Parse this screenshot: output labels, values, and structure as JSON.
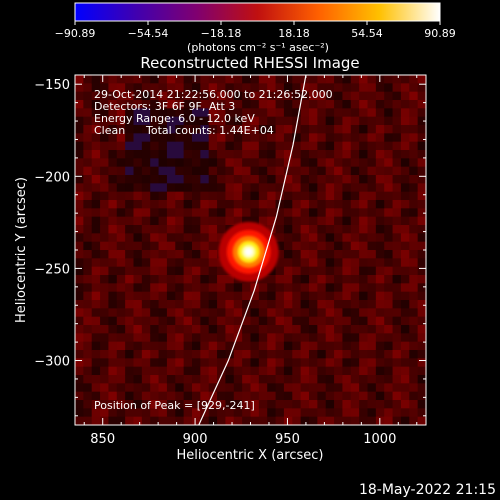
{
  "colorbar": {
    "tick_labels": [
      "−90.89",
      "−54.54",
      "−18.18",
      "18.18",
      "54.54",
      "90.89"
    ],
    "tick_values": [
      -90.89,
      -54.54,
      -18.18,
      18.18,
      54.54,
      90.89
    ],
    "range": [
      -90.89,
      90.89
    ],
    "units_label": "(photons cm⁻² s⁻¹ asec⁻²)",
    "colormap_stops": [
      "#0000ff",
      "#4000b0",
      "#800070",
      "#c01010",
      "#ff6000",
      "#ffc000",
      "#ffffff"
    ]
  },
  "chart_data": {
    "type": "heatmap",
    "title": "Reconstructed RHESSI Image",
    "xlabel": "Heliocentric X (arcsec)",
    "ylabel": "Heliocentric Y (arcsec)",
    "xlim": [
      835,
      1025
    ],
    "ylim": [
      -335,
      -145
    ],
    "xticks": [
      850,
      900,
      950,
      1000
    ],
    "xtick_labels": [
      "850",
      "900",
      "950",
      "1000"
    ],
    "yticks": [
      -150,
      -200,
      -250,
      -300
    ],
    "ytick_labels": [
      "−150",
      "−200",
      "−250",
      "−300"
    ],
    "annotations": [
      "29-Oct-2014 21:22:56.000 to 21:26:52.000",
      "Detectors: 3F 6F 9F, Att 3",
      "Energy Range: 6.0 - 12.0 keV",
      "Clean",
      "Total counts: 1.44E+04"
    ],
    "peak_label": "Position of Peak = [929,-241]",
    "peak": {
      "x": 929,
      "y": -241,
      "value": 90.89
    },
    "limb_curve": [
      {
        "x": 902,
        "y": -335
      },
      {
        "x": 918,
        "y": -300
      },
      {
        "x": 932,
        "y": -262
      },
      {
        "x": 944,
        "y": -222
      },
      {
        "x": 953,
        "y": -183
      },
      {
        "x": 960,
        "y": -145
      }
    ],
    "background_level": 12
  },
  "footer": {
    "timestamp": "18-May-2022 21:15"
  }
}
